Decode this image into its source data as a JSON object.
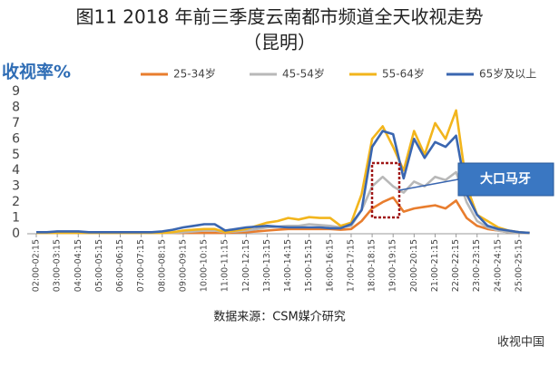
{
  "chart_data": {
    "type": "line",
    "title": "图11 2018 年前三季度云南都市频道全天收视走势",
    "subtitle": "（昆明）",
    "y_label": "收视率%",
    "annotation": "大口马牙",
    "source": "数据来源：CSM媒介研究",
    "watermark": "收视中国",
    "categories": [
      "02:00-02:15",
      null,
      "03:00-03:15",
      null,
      "04:00-04:15",
      null,
      "05:00-05:15",
      null,
      "06:00-06:15",
      null,
      "07:00-07:15",
      null,
      "08:00-08:15",
      null,
      "09:00-09:15",
      null,
      "10:00-10:15",
      null,
      "11:00-11:15",
      null,
      "12:00-12:15",
      null,
      "13:00-13:15",
      null,
      "14:00-14:15",
      null,
      "15:00-15:15",
      null,
      "16:00-16:15",
      null,
      "17:00-17:15",
      null,
      "18:00-18:15",
      null,
      "19:00-19:15",
      null,
      "20:00-20:15",
      null,
      "21:00-21:15",
      null,
      "22:00-22:15",
      null,
      "23:00-23:15",
      null,
      "24:00-24:15",
      null,
      "25:00-25:15",
      null
    ],
    "series": [
      {
        "name": "25-34岁",
        "color": "#e87d2e",
        "values": [
          0.05,
          0.05,
          0.05,
          0.05,
          0.05,
          0.05,
          0.05,
          0.05,
          0.05,
          0.05,
          0.05,
          0.05,
          0.05,
          0.05,
          0.05,
          0.05,
          0.05,
          0.05,
          0.05,
          0.08,
          0.1,
          0.15,
          0.2,
          0.25,
          0.3,
          0.3,
          0.3,
          0.3,
          0.3,
          0.25,
          0.3,
          0.8,
          1.6,
          2.0,
          2.3,
          1.4,
          1.6,
          1.7,
          1.8,
          1.6,
          2.1,
          1.0,
          0.5,
          0.3,
          0.2,
          0.1,
          0.05,
          0.05
        ]
      },
      {
        "name": "45-54岁",
        "color": "#b8b8b8",
        "values": [
          0.05,
          0.05,
          0.05,
          0.05,
          0.05,
          0.05,
          0.05,
          0.05,
          0.05,
          0.05,
          0.05,
          0.05,
          0.05,
          0.05,
          0.1,
          0.15,
          0.2,
          0.2,
          0.1,
          0.15,
          0.2,
          0.3,
          0.4,
          0.45,
          0.5,
          0.5,
          0.6,
          0.55,
          0.5,
          0.4,
          0.5,
          1.5,
          3.0,
          3.6,
          3.0,
          2.6,
          3.3,
          3.0,
          3.6,
          3.4,
          3.9,
          2.0,
          0.8,
          0.4,
          0.2,
          0.1,
          0.05,
          0.05
        ]
      },
      {
        "name": "55-64岁",
        "color": "#f2b51c",
        "values": [
          0.05,
          0.05,
          0.05,
          0.05,
          0.05,
          0.05,
          0.05,
          0.05,
          0.05,
          0.05,
          0.05,
          0.05,
          0.05,
          0.1,
          0.2,
          0.25,
          0.3,
          0.3,
          0.1,
          0.2,
          0.3,
          0.5,
          0.7,
          0.8,
          1.0,
          0.9,
          1.05,
          1.0,
          1.0,
          0.5,
          0.7,
          2.5,
          6.0,
          6.8,
          5.5,
          4.0,
          6.5,
          5.0,
          7.0,
          6.0,
          7.8,
          3.0,
          1.2,
          0.8,
          0.4,
          0.2,
          0.1,
          0.05
        ]
      },
      {
        "name": "65岁及以上",
        "color": "#3a66b0",
        "values": [
          0.1,
          0.1,
          0.15,
          0.15,
          0.15,
          0.1,
          0.1,
          0.1,
          0.1,
          0.1,
          0.1,
          0.1,
          0.15,
          0.25,
          0.4,
          0.5,
          0.6,
          0.6,
          0.2,
          0.3,
          0.4,
          0.45,
          0.5,
          0.45,
          0.4,
          0.4,
          0.4,
          0.4,
          0.35,
          0.35,
          0.6,
          1.5,
          5.5,
          6.5,
          6.3,
          3.5,
          6.0,
          4.8,
          5.8,
          5.5,
          6.2,
          2.5,
          1.2,
          0.5,
          0.3,
          0.2,
          0.1,
          0.05
        ]
      }
    ],
    "ylim": [
      0,
      9
    ],
    "yticks": [
      0,
      1,
      2,
      3,
      4,
      5,
      6,
      7,
      8,
      9
    ],
    "grid": false
  }
}
